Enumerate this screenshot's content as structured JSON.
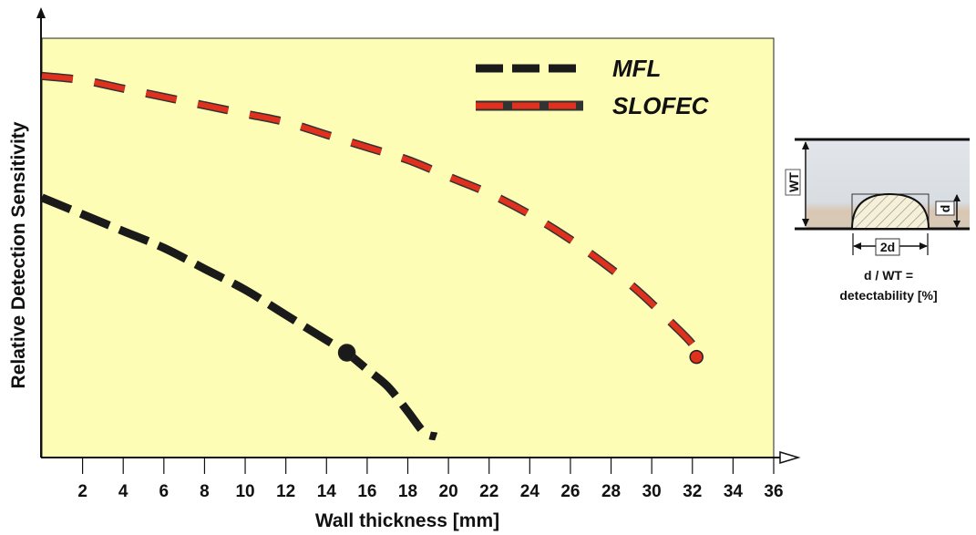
{
  "chart_data": {
    "type": "line",
    "xlabel": "Wall thickness [mm]",
    "ylabel": "Relative Detection Sensitivity",
    "xlim": [
      0,
      36
    ],
    "x_ticks": [
      2,
      4,
      6,
      8,
      10,
      12,
      14,
      16,
      18,
      20,
      22,
      24,
      26,
      28,
      30,
      32,
      34,
      36
    ],
    "ylim": [
      0,
      1
    ],
    "grid": false,
    "legend_position": "top-right",
    "colors": {
      "plot_bg": "#fdfdb6",
      "mfl": "#1a1a1a",
      "slofec": "#e0301e"
    },
    "series": [
      {
        "name": "MFL",
        "color": "#1a1a1a",
        "x": [
          0,
          2,
          4,
          6,
          8,
          10,
          12,
          14,
          15,
          16,
          17,
          18,
          18.8,
          19.4
        ],
        "y": [
          0.62,
          0.58,
          0.54,
          0.5,
          0.45,
          0.4,
          0.34,
          0.28,
          0.25,
          0.21,
          0.17,
          0.11,
          0.06,
          0.05
        ],
        "marker_at": [
          15,
          0.25
        ]
      },
      {
        "name": "SLOFEC",
        "color": "#e0301e",
        "x": [
          0,
          2,
          4,
          6,
          8,
          10,
          12,
          14,
          16,
          18,
          20,
          22,
          24,
          26,
          28,
          29.5,
          31,
          32,
          32.2
        ],
        "y": [
          0.91,
          0.9,
          0.88,
          0.86,
          0.84,
          0.82,
          0.8,
          0.77,
          0.74,
          0.71,
          0.67,
          0.63,
          0.58,
          0.52,
          0.45,
          0.39,
          0.32,
          0.27,
          0.24
        ],
        "marker_at": [
          32.2,
          0.24
        ]
      }
    ],
    "inset": {
      "wt_label": "WT",
      "d_label": "d",
      "width_label": "2d",
      "caption_line1": "d / WT  =",
      "caption_line2": "detectability [%]"
    }
  }
}
